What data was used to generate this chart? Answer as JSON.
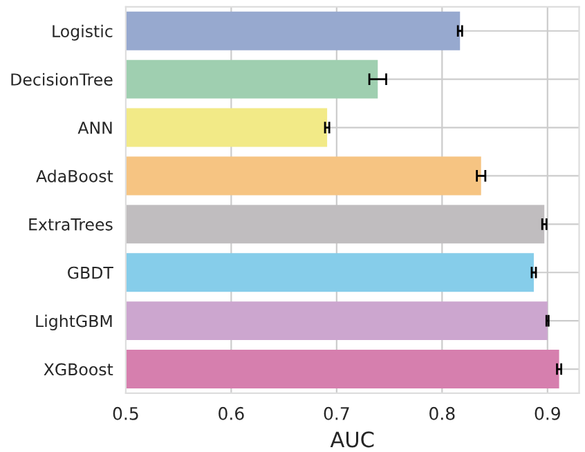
{
  "chart_data": {
    "type": "bar",
    "orientation": "horizontal",
    "xlabel": "AUC",
    "categories": [
      "Logistic",
      "DecisionTree",
      "ANN",
      "AdaBoost",
      "ExtraTrees",
      "GBDT",
      "LightGBM",
      "XGBoost"
    ],
    "values": [
      0.817,
      0.739,
      0.691,
      0.837,
      0.897,
      0.887,
      0.9,
      0.911
    ],
    "errors": [
      0.002,
      0.008,
      0.002,
      0.004,
      0.002,
      0.002,
      0.001,
      0.002
    ],
    "colors": [
      "#97a9cf",
      "#9fcfb0",
      "#f2ea87",
      "#f6c482",
      "#c0bdbf",
      "#86cdea",
      "#cca6cf",
      "#d67fae"
    ],
    "xlim": [
      0.5,
      0.93
    ],
    "xticks": [
      0.5,
      0.6,
      0.7,
      0.8,
      0.9
    ],
    "grid": true
  }
}
